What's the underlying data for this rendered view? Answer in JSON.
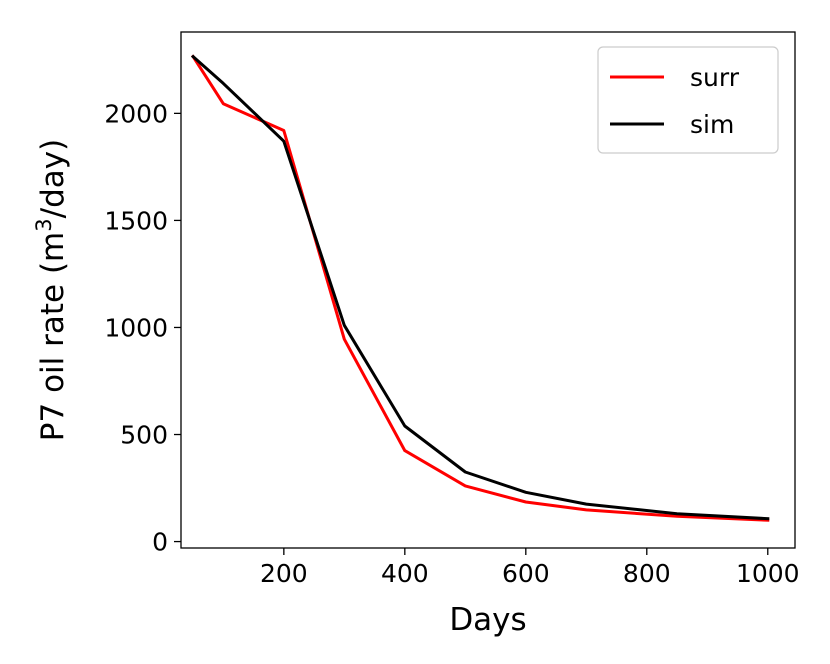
{
  "chart_data": {
    "type": "line",
    "xlabel": "Days",
    "ylabel": "P7 oil rate (m",
    "ylabel_superscript": "3",
    "ylabel_suffix": "/day)",
    "xlim": [
      30,
      1045
    ],
    "ylim": [
      -30,
      2380
    ],
    "xticks": [
      200,
      400,
      600,
      800,
      1000
    ],
    "yticks": [
      0,
      500,
      1000,
      1500,
      2000
    ],
    "grid": false,
    "legend_position": "top-right",
    "series": [
      {
        "name": "surr",
        "color": "#ff0000",
        "x": [
          50,
          100,
          200,
          300,
          400,
          500,
          600,
          700,
          850,
          1000
        ],
        "y": [
          2265,
          2045,
          1920,
          945,
          425,
          260,
          185,
          148,
          118,
          100
        ]
      },
      {
        "name": "sim",
        "color": "#000000",
        "x": [
          50,
          100,
          200,
          300,
          400,
          500,
          600,
          700,
          850,
          1000
        ],
        "y": [
          2265,
          2140,
          1870,
          1010,
          540,
          325,
          230,
          175,
          130,
          107
        ]
      }
    ]
  }
}
